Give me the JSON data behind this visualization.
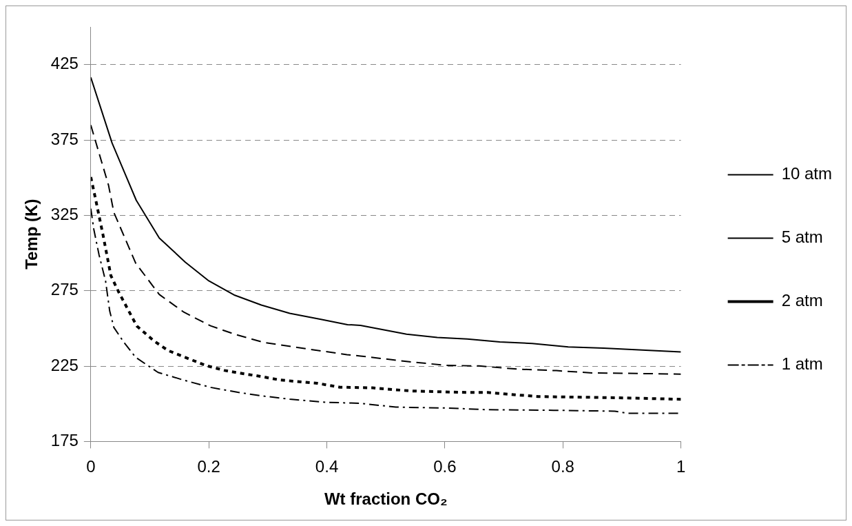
{
  "chart_data": {
    "type": "line",
    "xlabel": "Wt fraction CO₂",
    "ylabel": "Temp (K)",
    "xlim": [
      0,
      1
    ],
    "xticks": [
      0,
      0.2,
      0.4,
      0.6,
      0.8,
      1
    ],
    "ylim": [
      175,
      450
    ],
    "yticks": [
      175,
      225,
      275,
      325,
      375,
      425
    ],
    "grid": "y",
    "legend": "right",
    "marker": "none",
    "series": [
      {
        "name": "10 atm",
        "color": "#000000",
        "line_style": "solid",
        "x": [
          0,
          0.036,
          0.077,
          0.116,
          0.16,
          0.2,
          0.244,
          0.289,
          0.337,
          0.39,
          0.435,
          0.457,
          0.535,
          0.587,
          0.638,
          0.693,
          0.748,
          0.809,
          0.869,
          1.0
        ],
        "values": [
          416.5,
          373,
          335,
          310,
          294,
          281.5,
          272,
          265.5,
          260,
          256,
          252.5,
          252,
          246.2,
          244,
          243,
          241,
          240,
          237.7,
          236.9,
          234.4
        ]
      },
      {
        "name": "5 atm",
        "color": "#000000",
        "line_style": "dashed",
        "x": [
          0,
          0.03,
          0.039,
          0.076,
          0.116,
          0.158,
          0.203,
          0.245,
          0.292,
          0.339,
          0.434,
          0.457,
          0.532,
          0.602,
          0.658,
          0.723,
          0.789,
          0.849,
          1.0
        ],
        "values": [
          384.8,
          345,
          327,
          293.3,
          272.5,
          260.7,
          251.7,
          246,
          240.8,
          238,
          232.6,
          231.7,
          228.2,
          225.5,
          225.1,
          223,
          222,
          220.5,
          219.7
        ]
      },
      {
        "name": "2 atm",
        "color": "#000000",
        "line_style": "dotted",
        "x": [
          0,
          0.008,
          0.021,
          0.034,
          0.047,
          0.063,
          0.078,
          0.107,
          0.131,
          0.16,
          0.195,
          0.227,
          0.258,
          0.289,
          0.32,
          0.384,
          0.422,
          0.477,
          0.542,
          0.638,
          0.673,
          0.703,
          0.758,
          0.894,
          1.0
        ],
        "values": [
          350.4,
          335.9,
          311.4,
          285,
          274.3,
          262.5,
          251.6,
          241.7,
          235.3,
          230.8,
          225.4,
          222.1,
          220,
          218.1,
          215.8,
          213.6,
          211,
          210.6,
          208.5,
          207.5,
          207.5,
          206.5,
          204.8,
          204,
          203
        ]
      },
      {
        "name": "1 atm",
        "color": "#000000",
        "line_style": "dashdot",
        "x": [
          0,
          0.005,
          0.014,
          0.025,
          0.032,
          0.039,
          0.056,
          0.076,
          0.114,
          0.16,
          0.203,
          0.249,
          0.295,
          0.337,
          0.399,
          0.457,
          0.517,
          0.603,
          0.668,
          0.784,
          0.888,
          0.909,
          1.0
        ],
        "values": [
          329.5,
          315.9,
          298.7,
          281.5,
          261.6,
          250.7,
          240.8,
          230.8,
          220.8,
          215.4,
          210.9,
          207.6,
          205,
          203.1,
          201,
          200.3,
          197.8,
          197.2,
          196.1,
          195.7,
          195.1,
          193.7,
          193.7
        ]
      }
    ]
  }
}
